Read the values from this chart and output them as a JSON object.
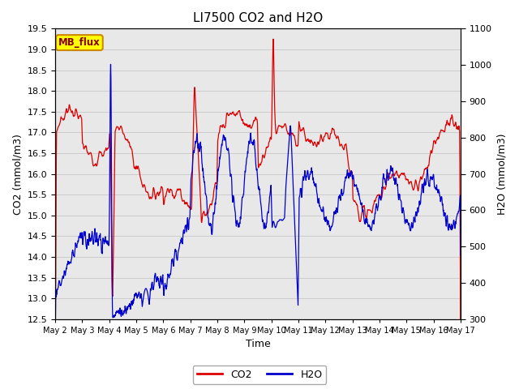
{
  "title": "LI7500 CO2 and H2O",
  "xlabel": "Time",
  "ylabel_left": "CO2 (mmol/m3)",
  "ylabel_right": "H2O (mmol/m3)",
  "ylim_left": [
    12.5,
    19.5
  ],
  "ylim_right": [
    300,
    1100
  ],
  "yticks_left": [
    12.5,
    13.0,
    13.5,
    14.0,
    14.5,
    15.0,
    15.5,
    16.0,
    16.5,
    17.0,
    17.5,
    18.0,
    18.5,
    19.0,
    19.5
  ],
  "yticks_right": [
    300,
    400,
    500,
    600,
    700,
    800,
    900,
    1000,
    1100
  ],
  "xtick_labels": [
    "May 2",
    "May 3",
    "May 4",
    "May 5",
    "May 6",
    "May 7",
    "May 8",
    "May 9",
    "May 10",
    "May 11",
    "May 12",
    "May 13",
    "May 14",
    "May 15",
    "May 16",
    "May 17"
  ],
  "co2_color": "#dd0000",
  "h2o_color": "#0000cc",
  "grid_color": "#cccccc",
  "background_color": "#ffffff",
  "annotation_text": "MB_flux",
  "annotation_bg": "#ffff00",
  "annotation_border": "#cc8800",
  "title_fontsize": 11,
  "label_fontsize": 9,
  "tick_fontsize": 8,
  "legend_fontsize": 9,
  "linewidth": 0.9
}
